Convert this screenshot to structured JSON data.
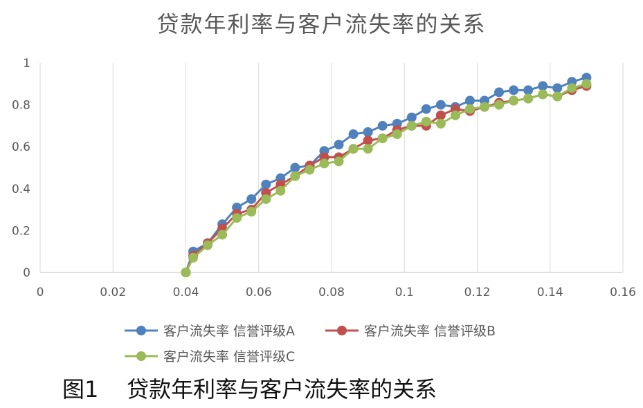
{
  "chart_data": {
    "type": "line",
    "title": "贷款年利率与客户流失率的关系",
    "xlim": [
      0,
      0.16
    ],
    "ylim": [
      0,
      1
    ],
    "x_ticks": [
      "0",
      "0.02",
      "0.04",
      "0.06",
      "0.08",
      "0.1",
      "0.12",
      "0.14",
      "0.16"
    ],
    "y_ticks": [
      "0",
      "0.2",
      "0.4",
      "0.6",
      "0.8",
      "1"
    ],
    "grid": "vertical",
    "legend_position": "bottom",
    "x": [
      0.04,
      0.042,
      0.046,
      0.05,
      0.054,
      0.058,
      0.062,
      0.066,
      0.07,
      0.074,
      0.078,
      0.082,
      0.086,
      0.09,
      0.094,
      0.098,
      0.102,
      0.106,
      0.11,
      0.114,
      0.118,
      0.122,
      0.126,
      0.13,
      0.134,
      0.138,
      0.142,
      0.146,
      0.15
    ],
    "series": [
      {
        "name": "客户流失率 信誉评级A",
        "color": "#4f81bd",
        "values": [
          0.0,
          0.1,
          0.14,
          0.23,
          0.31,
          0.35,
          0.42,
          0.45,
          0.5,
          0.51,
          0.58,
          0.61,
          0.66,
          0.67,
          0.7,
          0.71,
          0.74,
          0.78,
          0.8,
          0.79,
          0.82,
          0.82,
          0.86,
          0.87,
          0.87,
          0.89,
          0.88,
          0.91,
          0.93
        ]
      },
      {
        "name": "客户流失率 信誉评级B",
        "color": "#c0504d",
        "values": [
          0.0,
          0.08,
          0.14,
          0.21,
          0.28,
          0.3,
          0.38,
          0.42,
          0.46,
          0.51,
          0.55,
          0.55,
          0.59,
          0.63,
          0.64,
          0.68,
          0.7,
          0.7,
          0.75,
          0.78,
          0.77,
          0.79,
          0.81,
          0.82,
          0.83,
          0.85,
          0.84,
          0.87,
          0.89
        ]
      },
      {
        "name": "客户流失率 信誉评级C",
        "color": "#9bbb59",
        "values": [
          0.0,
          0.07,
          0.13,
          0.18,
          0.26,
          0.29,
          0.35,
          0.39,
          0.46,
          0.49,
          0.52,
          0.53,
          0.59,
          0.59,
          0.64,
          0.66,
          0.7,
          0.72,
          0.71,
          0.75,
          0.78,
          0.79,
          0.8,
          0.82,
          0.83,
          0.85,
          0.84,
          0.88,
          0.9
        ]
      }
    ]
  },
  "caption": {
    "label": "图1",
    "text": "贷款年利率与客户流失率的关系"
  }
}
